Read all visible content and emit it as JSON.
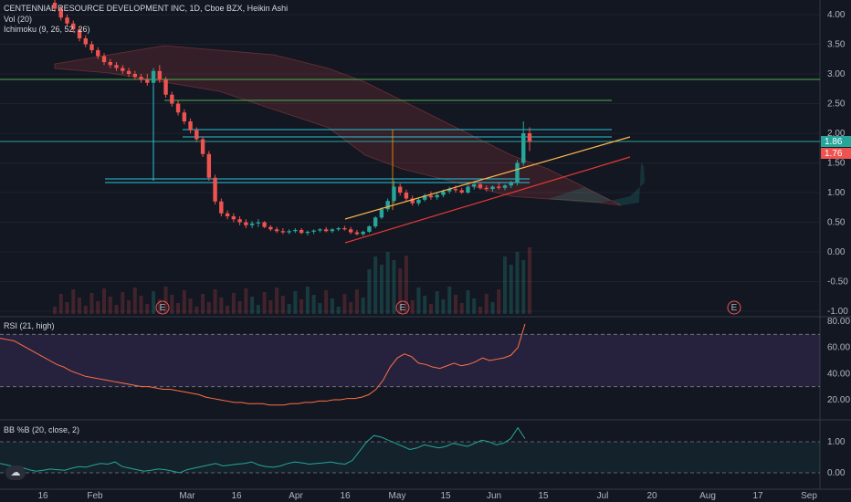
{
  "header": {
    "symbol": "CENTENNIAL RESOURCE DEVELOPMENT INC, 1D, Cboe BZX, Heikin Ashi",
    "vol": "Vol (20)",
    "ichimoku": "Ichimoku (9, 26, 52, 26)"
  },
  "colors": {
    "bg": "#131722",
    "up": "#26a69a",
    "down": "#ef5350",
    "grid": "#2a2e39",
    "text": "#b2b5be",
    "rsiBand": "#7e57c2"
  },
  "chart_data": [
    {
      "type": "candlestick",
      "title": "CENTENNIAL RESOURCE DEVELOPMENT INC, 1D, Cboe BZX, Heikin Ashi",
      "ylim": [
        -1.0,
        4.2
      ],
      "y_ticks": [
        "4.00",
        "3.50",
        "3.00",
        "2.50",
        "2.00",
        "1.50",
        "1.00",
        "0.50",
        "0.00",
        "-0.50",
        "-1.00"
      ],
      "x_ticks": [
        "16",
        "Feb",
        "Mar",
        "16",
        "Apr",
        "16",
        "May",
        "15",
        "Jun",
        "15",
        "Jul",
        "20",
        "Aug",
        "17",
        "Sep"
      ],
      "price_labels": [
        "1.86",
        "1.76"
      ],
      "earnings_markers": [
        "E",
        "E",
        "E"
      ],
      "candles": [
        [
          4.2,
          4.35,
          4.05,
          4.1
        ],
        [
          4.1,
          4.15,
          3.9,
          3.95
        ],
        [
          3.95,
          4.0,
          3.8,
          3.85
        ],
        [
          3.85,
          3.9,
          3.7,
          3.75
        ],
        [
          3.75,
          3.8,
          3.55,
          3.6
        ],
        [
          3.6,
          3.65,
          3.45,
          3.5
        ],
        [
          3.5,
          3.55,
          3.35,
          3.4
        ],
        [
          3.4,
          3.45,
          3.25,
          3.3
        ],
        [
          3.3,
          3.35,
          3.15,
          3.2
        ],
        [
          3.2,
          3.25,
          3.1,
          3.15
        ],
        [
          3.15,
          3.2,
          3.05,
          3.1
        ],
        [
          3.1,
          3.15,
          3.0,
          3.05
        ],
        [
          3.05,
          3.1,
          2.95,
          3.0
        ],
        [
          3.0,
          3.05,
          2.9,
          2.95
        ],
        [
          2.95,
          3.0,
          2.85,
          2.9
        ],
        [
          2.9,
          3.0,
          2.8,
          2.85
        ],
        [
          2.85,
          3.1,
          2.8,
          3.05
        ],
        [
          3.05,
          3.15,
          2.85,
          2.9
        ],
        [
          2.9,
          2.95,
          2.6,
          2.65
        ],
        [
          2.65,
          2.7,
          2.45,
          2.5
        ],
        [
          2.5,
          2.55,
          2.3,
          2.35
        ],
        [
          2.35,
          2.4,
          2.15,
          2.2
        ],
        [
          2.2,
          2.25,
          2.0,
          2.05
        ],
        [
          2.05,
          2.1,
          1.85,
          1.9
        ],
        [
          1.9,
          1.95,
          1.6,
          1.65
        ],
        [
          1.65,
          1.7,
          1.2,
          1.25
        ],
        [
          1.25,
          1.3,
          0.8,
          0.85
        ],
        [
          0.85,
          0.9,
          0.6,
          0.65
        ],
        [
          0.65,
          0.7,
          0.55,
          0.6
        ],
        [
          0.6,
          0.65,
          0.5,
          0.55
        ],
        [
          0.55,
          0.6,
          0.45,
          0.5
        ],
        [
          0.5,
          0.55,
          0.4,
          0.45
        ],
        [
          0.45,
          0.52,
          0.4,
          0.48
        ],
        [
          0.48,
          0.55,
          0.42,
          0.5
        ],
        [
          0.5,
          0.52,
          0.4,
          0.42
        ],
        [
          0.42,
          0.45,
          0.35,
          0.38
        ],
        [
          0.38,
          0.42,
          0.32,
          0.35
        ],
        [
          0.35,
          0.4,
          0.3,
          0.33
        ],
        [
          0.33,
          0.38,
          0.3,
          0.35
        ],
        [
          0.35,
          0.4,
          0.32,
          0.37
        ],
        [
          0.37,
          0.4,
          0.3,
          0.32
        ],
        [
          0.32,
          0.36,
          0.28,
          0.34
        ],
        [
          0.34,
          0.38,
          0.3,
          0.36
        ],
        [
          0.36,
          0.4,
          0.33,
          0.38
        ],
        [
          0.38,
          0.42,
          0.33,
          0.35
        ],
        [
          0.35,
          0.4,
          0.32,
          0.38
        ],
        [
          0.38,
          0.42,
          0.35,
          0.4
        ],
        [
          0.4,
          0.44,
          0.36,
          0.38
        ],
        [
          0.38,
          0.42,
          0.3,
          0.33
        ],
        [
          0.33,
          0.37,
          0.28,
          0.3
        ],
        [
          0.3,
          0.36,
          0.27,
          0.34
        ],
        [
          0.34,
          0.45,
          0.32,
          0.43
        ],
        [
          0.43,
          0.6,
          0.4,
          0.58
        ],
        [
          0.58,
          0.75,
          0.55,
          0.72
        ],
        [
          0.72,
          0.9,
          0.68,
          0.86
        ],
        [
          0.86,
          1.2,
          0.82,
          1.1
        ],
        [
          1.1,
          1.15,
          0.95,
          1.0
        ],
        [
          1.0,
          1.05,
          0.85,
          0.9
        ],
        [
          0.9,
          0.95,
          0.78,
          0.82
        ],
        [
          0.82,
          0.9,
          0.78,
          0.88
        ],
        [
          0.88,
          0.98,
          0.85,
          0.95
        ],
        [
          0.95,
          1.02,
          0.88,
          0.92
        ],
        [
          0.92,
          1.0,
          0.88,
          0.96
        ],
        [
          0.96,
          1.05,
          0.92,
          1.02
        ],
        [
          1.02,
          1.1,
          0.98,
          1.06
        ],
        [
          1.06,
          1.12,
          1.0,
          1.04
        ],
        [
          1.04,
          1.08,
          0.98,
          1.0
        ],
        [
          1.0,
          1.12,
          0.98,
          1.1
        ],
        [
          1.1,
          1.18,
          1.05,
          1.14
        ],
        [
          1.14,
          1.18,
          1.05,
          1.08
        ],
        [
          1.08,
          1.12,
          1.02,
          1.06
        ],
        [
          1.06,
          1.12,
          1.02,
          1.1
        ],
        [
          1.1,
          1.16,
          1.05,
          1.08
        ],
        [
          1.08,
          1.14,
          1.04,
          1.12
        ],
        [
          1.12,
          1.2,
          1.08,
          1.16
        ],
        [
          1.16,
          1.55,
          1.12,
          1.5
        ],
        [
          1.5,
          2.2,
          1.45,
          2.0
        ],
        [
          2.0,
          2.1,
          1.7,
          1.86
        ]
      ]
    },
    {
      "type": "line",
      "title": "RSI (21, high)",
      "ylim": [
        10,
        80
      ],
      "y_ticks": [
        "80.00",
        "60.00",
        "40.00",
        "20.00"
      ],
      "bands": [
        30,
        70
      ],
      "values": [
        67,
        66,
        65,
        62,
        59,
        56,
        53,
        50,
        47,
        45,
        42,
        40,
        38,
        37,
        36,
        35,
        34,
        33,
        32,
        31,
        30,
        30,
        29,
        28,
        28,
        27,
        26,
        25,
        24,
        22,
        21,
        20,
        19,
        18,
        18,
        17,
        17,
        17,
        16,
        16,
        16,
        17,
        17,
        18,
        18,
        19,
        19,
        20,
        20,
        21,
        21,
        22,
        24,
        28,
        35,
        45,
        52,
        55,
        53,
        48,
        47,
        45,
        44,
        46,
        48,
        46,
        47,
        49,
        52,
        50,
        51,
        52,
        54,
        60,
        78
      ]
    },
    {
      "type": "line",
      "title": "BB %B (20, close, 2)",
      "ylim": [
        -0.2,
        1.6
      ],
      "y_ticks": [
        "1.00",
        "0.00"
      ],
      "values": [
        0.3,
        0.25,
        0.2,
        0.18,
        0.1,
        0.05,
        0.08,
        0.12,
        0.1,
        0.08,
        0.15,
        0.2,
        0.18,
        0.25,
        0.3,
        0.28,
        0.35,
        0.2,
        0.15,
        0.1,
        0.05,
        0.08,
        0.12,
        0.1,
        0.05,
        0.0,
        0.1,
        0.15,
        0.2,
        0.25,
        0.3,
        0.22,
        0.25,
        0.28,
        0.3,
        0.35,
        0.25,
        0.2,
        0.18,
        0.22,
        0.3,
        0.35,
        0.32,
        0.28,
        0.3,
        0.32,
        0.35,
        0.3,
        0.28,
        0.4,
        0.7,
        1.0,
        1.2,
        1.15,
        1.05,
        0.95,
        0.85,
        0.75,
        0.8,
        0.9,
        0.85,
        0.8,
        0.85,
        0.95,
        0.9,
        0.85,
        0.95,
        1.05,
        1.0,
        0.9,
        0.95,
        1.1,
        1.45,
        1.1
      ]
    }
  ]
}
